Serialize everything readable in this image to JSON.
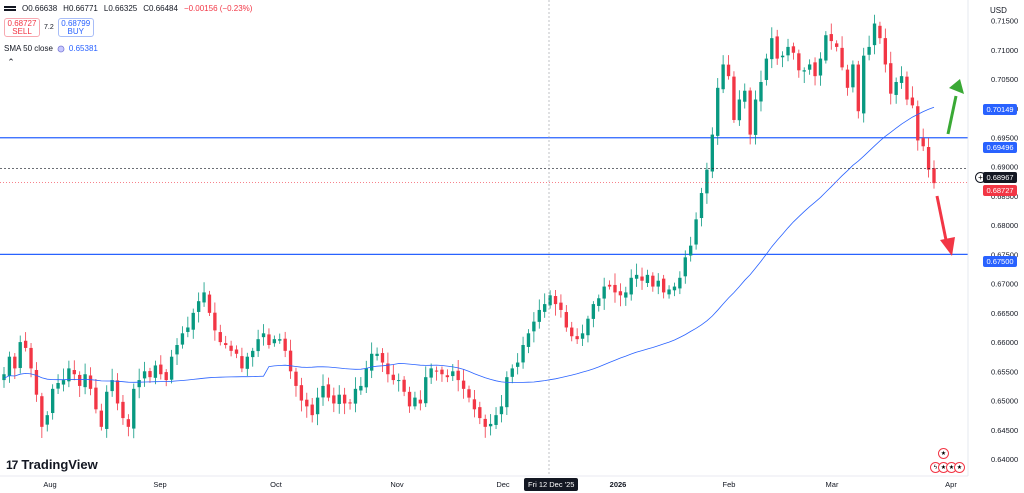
{
  "header": {
    "open_label": "O",
    "open": "0.66638",
    "high_label": "H",
    "high": "0.66771",
    "low_label": "L",
    "low": "0.66325",
    "close_label": "C",
    "close": "0.66484",
    "change": "−0.00156 (−0.23%)"
  },
  "trade": {
    "sell_price": "0.68727",
    "sell_label": "SELL",
    "spread": "7.2",
    "buy_price": "0.68799",
    "buy_label": "BUY"
  },
  "indicator": {
    "label": "SMA 50 close",
    "value": "0.65381"
  },
  "currency": "USD",
  "logo": "TradingView",
  "crosshair_date": "Fri 12 Dec '25",
  "price_tags": {
    "sma": "0.70149",
    "level_upper": "0.69496",
    "crosshair": "0.68967",
    "last": "0.68727",
    "level_lower": "0.67500"
  },
  "colors": {
    "up": "#089981",
    "down": "#f23645",
    "sma": "#2962ff",
    "level": "#2962ff",
    "arrow_up": "#3aa935",
    "arrow_down": "#f23645"
  },
  "chart_data": {
    "type": "candlestick",
    "y_ticks": [
      "0.71500",
      "0.71000",
      "0.70500",
      "0.70000",
      "0.69500",
      "0.69000",
      "0.68500",
      "0.68000",
      "0.67500",
      "0.67000",
      "0.66500",
      "0.66000",
      "0.65500",
      "0.65000",
      "0.64500",
      "0.64000"
    ],
    "x_ticks": [
      "Aug",
      "Sep",
      "Oct",
      "Nov",
      "Dec",
      "2026",
      "Feb",
      "Mar",
      "Apr"
    ],
    "ylim": [
      0.6388,
      0.7175
    ],
    "horizontal_levels": [
      0.69496,
      0.675
    ],
    "sma_period": 50,
    "close_path": [
      0.6545,
      0.6575,
      0.6555,
      0.66,
      0.659,
      0.6555,
      0.651,
      0.6455,
      0.6475,
      0.652,
      0.653,
      0.6535,
      0.6555,
      0.6545,
      0.6525,
      0.6545,
      0.652,
      0.6485,
      0.6455,
      0.6515,
      0.6535,
      0.6495,
      0.647,
      0.6455,
      0.652,
      0.6535,
      0.655,
      0.654,
      0.656,
      0.6545,
      0.6535,
      0.6575,
      0.6595,
      0.6615,
      0.6625,
      0.665,
      0.667,
      0.6685,
      0.665,
      0.662,
      0.66,
      0.6595,
      0.6585,
      0.658,
      0.6555,
      0.6575,
      0.6585,
      0.6605,
      0.6615,
      0.6595,
      0.6605,
      0.6605,
      0.6585,
      0.655,
      0.6525,
      0.65,
      0.649,
      0.6475,
      0.6505,
      0.6525,
      0.6505,
      0.6495,
      0.651,
      0.6495,
      0.6495,
      0.652,
      0.6525,
      0.6555,
      0.658,
      0.658,
      0.6565,
      0.6545,
      0.6535,
      0.6535,
      0.6515,
      0.649,
      0.6505,
      0.6495,
      0.654,
      0.6555,
      0.655,
      0.6545,
      0.654,
      0.655,
      0.6535,
      0.652,
      0.6505,
      0.6485,
      0.647,
      0.6455,
      0.646,
      0.6475,
      0.649,
      0.654,
      0.6555,
      0.6565,
      0.6595,
      0.6615,
      0.6635,
      0.6655,
      0.6665,
      0.668,
      0.6665,
      0.6655,
      0.6625,
      0.661,
      0.6605,
      0.6615,
      0.664,
      0.6665,
      0.6675,
      0.6695,
      0.6695,
      0.6685,
      0.668,
      0.6685,
      0.671,
      0.6715,
      0.6705,
      0.6715,
      0.6695,
      0.6705,
      0.6685,
      0.669,
      0.6695,
      0.671,
      0.6745,
      0.6765,
      0.681,
      0.6855,
      0.6895,
      0.6955,
      0.7035,
      0.7075,
      0.7055,
      0.698,
      0.7015,
      0.703,
      0.6955,
      0.7015,
      0.7045,
      0.7085,
      0.712,
      0.7085,
      0.709,
      0.7105,
      0.7095,
      0.7065,
      0.7065,
      0.7075,
      0.7055,
      0.7085,
      0.7125,
      0.7115,
      0.7105,
      0.707,
      0.7035,
      0.7075,
      0.6995,
      0.709,
      0.7105,
      0.7145,
      0.712,
      0.7075,
      0.7025,
      0.7045,
      0.7055,
      0.7015,
      0.7005,
      0.6945,
      0.6935,
      0.6895,
      0.6872
    ]
  }
}
